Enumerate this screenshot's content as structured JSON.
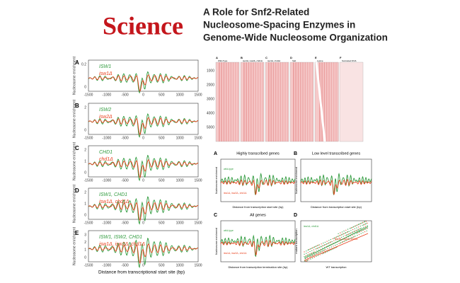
{
  "header": {
    "logo": "Science",
    "title_lines": [
      "A Role for Snf2-Related",
      "Nucleosome-Spacing Enzymes in",
      "Genome-Wide Nucleosome Organization"
    ]
  },
  "left_figure": {
    "y_label": "Nucleosome enrichment",
    "x_label": "Distance from transcriptional start site (bp)",
    "x_ticks": [
      "-1500",
      "-1000",
      "-500",
      "0",
      "500",
      "1000",
      "1500"
    ],
    "panels": [
      {
        "letter": "A",
        "green": "ISW1",
        "red": "isw1Δ",
        "y_ticks": [
          "0.2",
          "0"
        ]
      },
      {
        "letter": "B",
        "green": "ISW2",
        "red": "isw2Δ",
        "y_ticks": [
          "2",
          "0"
        ]
      },
      {
        "letter": "C",
        "green": "CHD1",
        "red": "chd1Δ",
        "y_ticks": [
          "2",
          "1",
          "0"
        ]
      },
      {
        "letter": "D",
        "green": "ISW1, CHD1",
        "red": "isw1Δ, chd1Δ",
        "y_ticks": [
          "2",
          "1",
          "0"
        ]
      },
      {
        "letter": "E",
        "green": "ISW1, ISW2, CHD1",
        "red": "isw1Δ, isw2Δ, chd1Δ",
        "y_ticks": [
          "3",
          "2",
          "1",
          "0"
        ]
      }
    ]
  },
  "heatmaps": {
    "panels": [
      {
        "letter": "A",
        "label": "Wild-Type"
      },
      {
        "letter": "B",
        "label": "isw1Δ, isw2Δ, chd1Δ"
      },
      {
        "letter": "C",
        "label": "isw1Δ, chd1Δ"
      },
      {
        "letter": "D",
        "label": "Salt"
      },
      {
        "letter": "E",
        "label": "Lysine"
      },
      {
        "letter": "F",
        "label": "Sonicated DNA"
      }
    ],
    "y_ticks": [
      "1000",
      "2000",
      "3000",
      "4000",
      "5000"
    ]
  },
  "right_figure": {
    "y_label": "Nucleosome enrichment",
    "panels": [
      {
        "letter": "A",
        "title": "Highly transcribed genes",
        "x_label": "Distance from transcription start site (bp)",
        "green": "wild-type",
        "red": "isw1Δ, isw2Δ, chd1Δ"
      },
      {
        "letter": "B",
        "title": "Low level transcribed genes",
        "x_label": "Distance from transcription start site (bp)"
      },
      {
        "letter": "C",
        "title": "All genes",
        "x_label": "Distance from transcription termination site (bp)",
        "green": "wild-type",
        "red": "isw1Δ, isw2Δ, chd1Δ"
      },
      {
        "letter": "D",
        "x_label": "WT transcription",
        "y_label": "mutant transcription",
        "green": "isw1Δ, chd1Δ",
        "red": "isw1Δ, isw2Δ, chd1Δ"
      }
    ]
  }
}
